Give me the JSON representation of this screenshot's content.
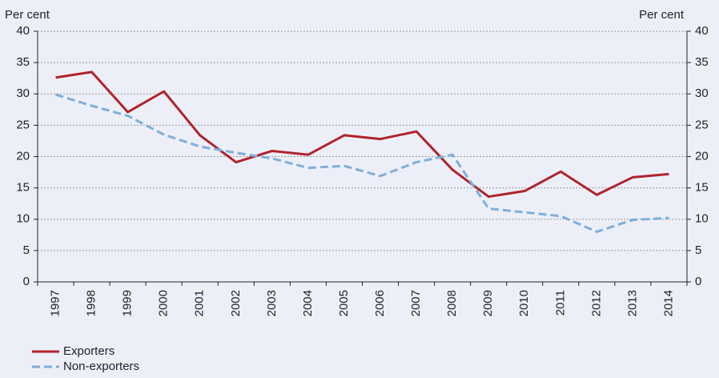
{
  "chart_data": {
    "type": "line",
    "y_label": "Per cent",
    "y2_label": "Per cent",
    "categories": [
      "1997",
      "1998",
      "1999",
      "2000",
      "2001",
      "2002",
      "2003",
      "2004",
      "2005",
      "2006",
      "2007",
      "2008",
      "2009",
      "2010",
      "2011",
      "2012",
      "2013",
      "2014"
    ],
    "series": [
      {
        "name": "Exporters",
        "color": "#b0232c",
        "dash": false,
        "values": [
          32.6,
          33.5,
          27.1,
          30.4,
          23.4,
          19.1,
          20.9,
          20.3,
          23.4,
          22.8,
          24.0,
          17.9,
          13.6,
          14.5,
          17.6,
          13.9,
          16.7,
          17.2
        ]
      },
      {
        "name": "Non-exporters",
        "color": "#7eaedb",
        "dash": true,
        "values": [
          29.9,
          28.1,
          26.5,
          23.5,
          21.6,
          20.6,
          19.7,
          18.2,
          18.5,
          16.9,
          19.1,
          20.3,
          11.7,
          11.1,
          10.5,
          8.0,
          9.9,
          10.2
        ]
      }
    ],
    "ylim": [
      0,
      40
    ],
    "yticks": [
      0,
      5,
      10,
      15,
      20,
      25,
      30,
      35,
      40
    ],
    "y2lim": [
      0,
      40
    ],
    "y2ticks": [
      0,
      5,
      10,
      15,
      20,
      25,
      30,
      35,
      40
    ],
    "grid": true,
    "legend": "bottom-left"
  }
}
